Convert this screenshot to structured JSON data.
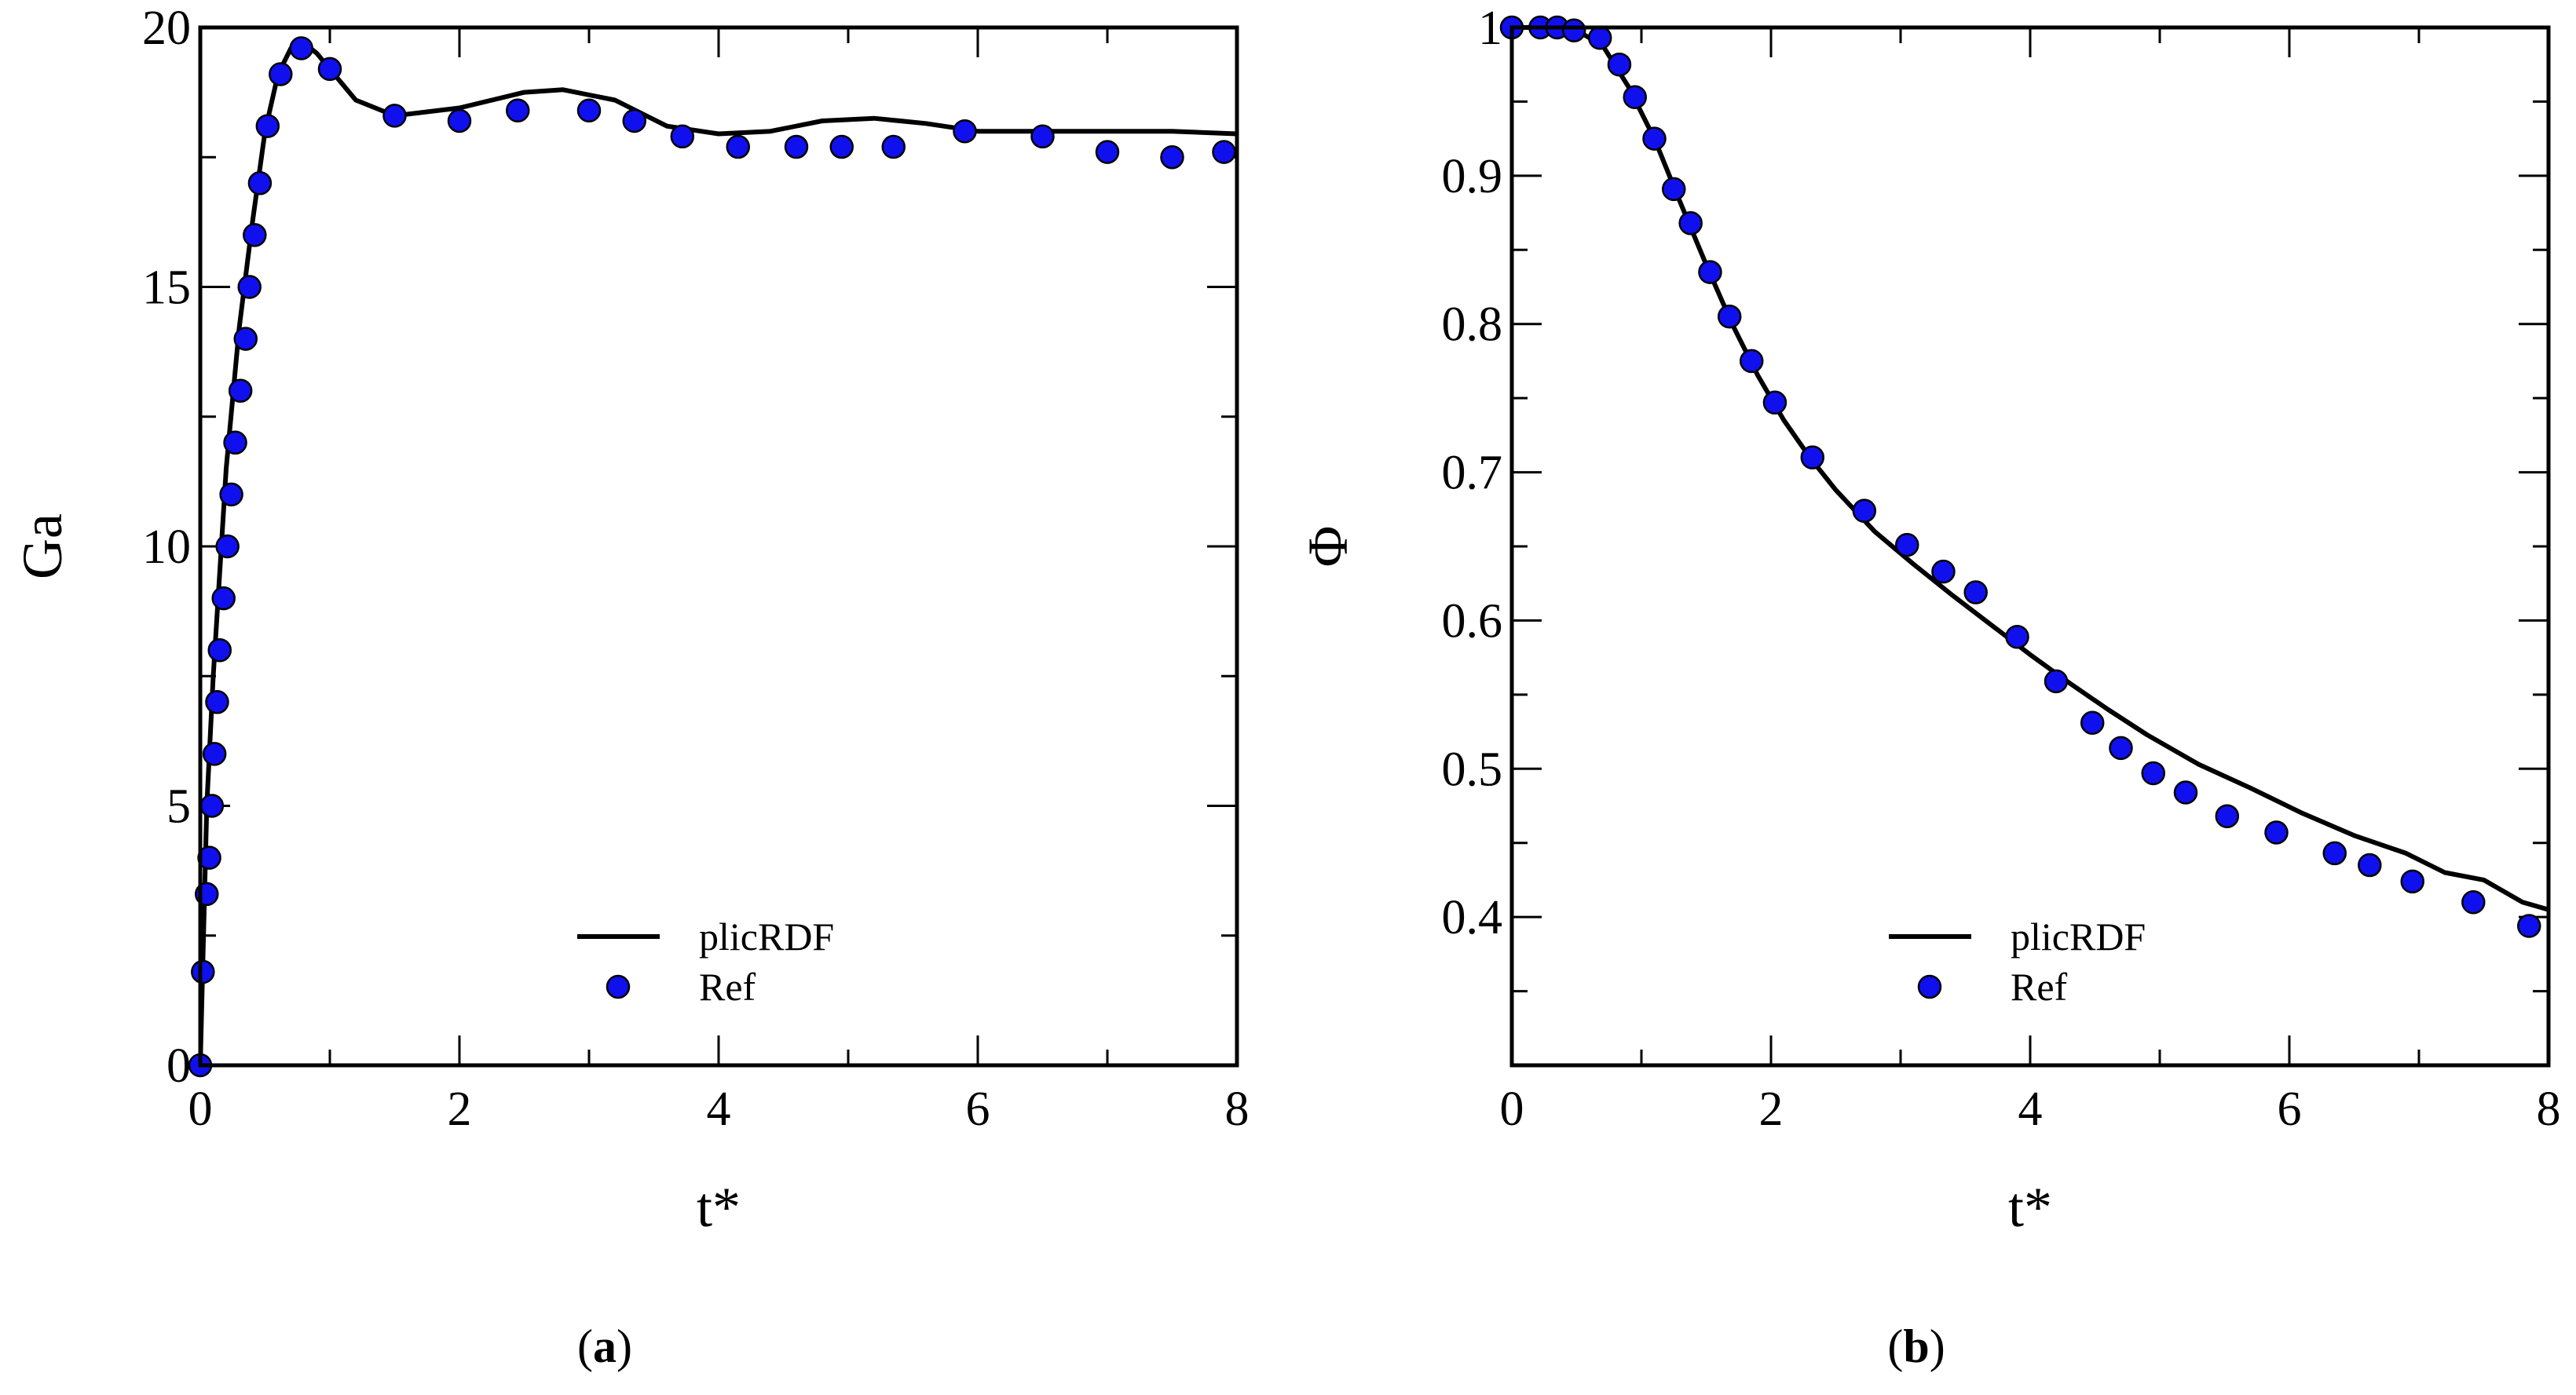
{
  "chart_data": [
    {
      "type": "line",
      "panel": "a",
      "caption": {
        "open": "(",
        "letter": "a",
        "close": ")"
      },
      "xlabel": "t*",
      "ylabel": "Ga",
      "xlim": [
        0,
        8
      ],
      "ylim": [
        0,
        20
      ],
      "xticks": [
        0,
        2,
        4,
        6,
        8
      ],
      "yticks": [
        0,
        5,
        10,
        15,
        20
      ],
      "xticklabels": [
        "0",
        "2",
        "4",
        "6",
        "8"
      ],
      "yticklabels": [
        "0",
        "5",
        "10",
        "15",
        "20"
      ],
      "legend_position": "bottom-center",
      "series": [
        {
          "name": "plicRDF",
          "kind": "line",
          "color": "#000000",
          "x": [
            0,
            0.05,
            0.1,
            0.15,
            0.2,
            0.3,
            0.4,
            0.5,
            0.6,
            0.7,
            0.8,
            0.9,
            1.0,
            1.2,
            1.5,
            2.0,
            2.5,
            2.8,
            3.2,
            3.6,
            4.0,
            4.4,
            4.8,
            5.2,
            5.6,
            6.0,
            6.5,
            7.0,
            7.5,
            8.0
          ],
          "y": [
            0,
            5.0,
            7.5,
            9.5,
            11.5,
            14.2,
            16.2,
            18.0,
            19.1,
            19.6,
            19.7,
            19.5,
            19.2,
            18.6,
            18.3,
            18.45,
            18.75,
            18.8,
            18.6,
            18.1,
            17.95,
            18.0,
            18.2,
            18.25,
            18.15,
            18.0,
            18.0,
            18.0,
            18.0,
            17.95
          ]
        },
        {
          "name": "Ref",
          "kind": "scatter",
          "color": "#1010ee",
          "x": [
            0.0,
            0.02,
            0.05,
            0.07,
            0.09,
            0.11,
            0.13,
            0.15,
            0.18,
            0.21,
            0.24,
            0.27,
            0.31,
            0.35,
            0.38,
            0.42,
            0.46,
            0.52,
            0.62,
            0.78,
            1.0,
            1.5,
            2.0,
            2.45,
            3.0,
            3.35,
            3.72,
            4.15,
            4.6,
            4.95,
            5.35,
            5.9,
            6.5,
            7.0,
            7.5,
            7.9
          ],
          "y": [
            0.0,
            1.8,
            3.3,
            4.0,
            5.0,
            6.0,
            7.0,
            8.0,
            9.0,
            10.0,
            11.0,
            12.0,
            13.0,
            14.0,
            15.0,
            16.0,
            17.0,
            18.1,
            19.1,
            19.6,
            19.2,
            18.3,
            18.2,
            18.4,
            18.4,
            18.2,
            17.9,
            17.7,
            17.7,
            17.7,
            17.7,
            18.0,
            17.9,
            17.6,
            17.5,
            17.6
          ]
        }
      ]
    },
    {
      "type": "line",
      "panel": "b",
      "caption": {
        "open": "(",
        "letter": "b",
        "close": ")"
      },
      "xlabel": "t*",
      "ylabel": "Φ",
      "xlim": [
        0,
        8
      ],
      "ylim": [
        0.3,
        1.0
      ],
      "xticks": [
        0,
        2,
        4,
        6,
        8
      ],
      "yticks": [
        0.4,
        0.5,
        0.6,
        0.7,
        0.8,
        0.9,
        1.0
      ],
      "xticklabels": [
        "0",
        "2",
        "4",
        "6",
        "8"
      ],
      "yticklabels": [
        "0.4",
        "0.5",
        "0.6",
        "0.7",
        "0.8",
        "0.9",
        "1"
      ],
      "legend_position": "bottom-right",
      "series": [
        {
          "name": "plicRDF",
          "kind": "line",
          "color": "#000000",
          "x": [
            0,
            0.3,
            0.5,
            0.7,
            0.9,
            1.1,
            1.3,
            1.5,
            1.7,
            1.9,
            2.1,
            2.3,
            2.5,
            2.8,
            3.1,
            3.4,
            3.7,
            4.0,
            4.3,
            4.6,
            4.9,
            5.3,
            5.7,
            6.1,
            6.5,
            6.9,
            7.2,
            7.5,
            7.8,
            8.0
          ],
          "y": [
            1.0,
            1.0,
            0.998,
            0.988,
            0.96,
            0.925,
            0.882,
            0.84,
            0.8,
            0.765,
            0.735,
            0.71,
            0.688,
            0.66,
            0.638,
            0.617,
            0.597,
            0.577,
            0.558,
            0.54,
            0.523,
            0.503,
            0.487,
            0.47,
            0.455,
            0.443,
            0.43,
            0.425,
            0.41,
            0.405
          ]
        },
        {
          "name": "Ref",
          "kind": "scatter",
          "color": "#1010ee",
          "x": [
            0.0,
            0.22,
            0.35,
            0.48,
            0.68,
            0.83,
            0.95,
            1.1,
            1.25,
            1.38,
            1.53,
            1.68,
            1.85,
            2.03,
            2.32,
            2.72,
            3.05,
            3.33,
            3.58,
            3.9,
            4.2,
            4.48,
            4.7,
            4.95,
            5.2,
            5.52,
            5.9,
            6.35,
            6.62,
            6.95,
            7.42,
            7.85
          ],
          "y": [
            1.0,
            1.0,
            1.0,
            0.998,
            0.993,
            0.975,
            0.953,
            0.925,
            0.891,
            0.868,
            0.835,
            0.805,
            0.775,
            0.747,
            0.71,
            0.674,
            0.651,
            0.633,
            0.619,
            0.589,
            0.559,
            0.531,
            0.514,
            0.497,
            0.484,
            0.468,
            0.457,
            0.443,
            0.435,
            0.424,
            0.41,
            0.394
          ]
        }
      ]
    }
  ]
}
